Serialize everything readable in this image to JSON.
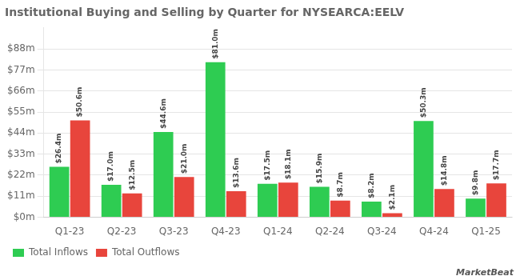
{
  "chart_data": {
    "type": "bar",
    "title": "Institutional Buying and Selling by Quarter for NYSEARCA:EELV",
    "categories": [
      "Q1-23",
      "Q2-23",
      "Q3-23",
      "Q4-23",
      "Q1-24",
      "Q2-24",
      "Q3-24",
      "Q4-24",
      "Q1-25"
    ],
    "series": [
      {
        "name": "Total Inflows",
        "color": "#2ecc52",
        "values": [
          26.4,
          17.0,
          44.6,
          81.0,
          17.5,
          15.9,
          8.2,
          50.3,
          9.8
        ],
        "value_labels": [
          "$26.4m",
          "$17.0m",
          "$44.6m",
          "$81.0m",
          "$17.5m",
          "$15.9m",
          "$8.2m",
          "$50.3m",
          "$9.8m"
        ]
      },
      {
        "name": "Total Outflows",
        "color": "#e8453c",
        "values": [
          50.6,
          12.5,
          21.0,
          13.6,
          18.1,
          8.7,
          2.1,
          14.8,
          17.7
        ],
        "value_labels": [
          "$50.6m",
          "$12.5m",
          "$21.0m",
          "$13.6m",
          "$18.1m",
          "$8.7m",
          "$2.1m",
          "$14.8m",
          "$17.7m"
        ]
      }
    ],
    "ylim": [
      0,
      99
    ],
    "yticks": [
      {
        "value": 0,
        "label": "$0m"
      },
      {
        "value": 11,
        "label": "$11m"
      },
      {
        "value": 22,
        "label": "$22m"
      },
      {
        "value": 33,
        "label": "$33m"
      },
      {
        "value": 44,
        "label": "$44m"
      },
      {
        "value": 55,
        "label": "$55m"
      },
      {
        "value": 66,
        "label": "$66m"
      },
      {
        "value": 77,
        "label": "$77m"
      },
      {
        "value": 88,
        "label": "$88m"
      }
    ],
    "grid": true,
    "legend": "bottom",
    "data_labels": true,
    "annotations": [
      "MarketBeat"
    ]
  }
}
